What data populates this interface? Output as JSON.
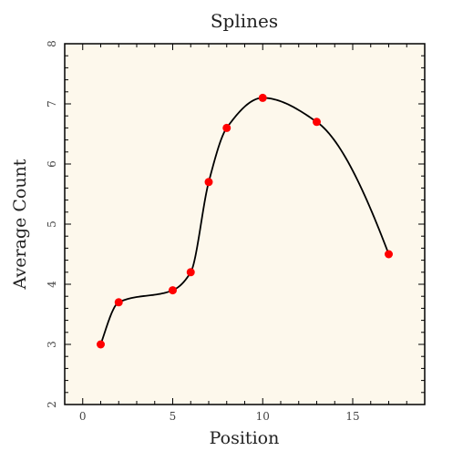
{
  "chart_data": {
    "type": "line",
    "title": "Splines",
    "xlabel": "Position",
    "ylabel": "Average Count",
    "xlim": [
      -1,
      19
    ],
    "ylim": [
      2,
      8
    ],
    "x_ticks": [
      0,
      5,
      10,
      15
    ],
    "y_ticks": [
      2,
      3,
      4,
      5,
      6,
      7,
      8
    ],
    "x_tick_labels": [
      "0",
      "5",
      "10",
      "15"
    ],
    "y_tick_labels": [
      "2",
      "3",
      "4",
      "5",
      "6",
      "7",
      "8"
    ],
    "grid": false,
    "legend": "none",
    "series": [
      {
        "x": [
          1,
          2,
          5,
          6,
          7,
          8,
          10,
          13,
          17
        ],
        "y": [
          3.0,
          3.7,
          3.9,
          4.2,
          5.7,
          6.6,
          7.1,
          6.7,
          4.5
        ]
      }
    ],
    "colors": {
      "background": "#fdf8ec",
      "line": "#000000",
      "marker": "#ff0000"
    }
  }
}
